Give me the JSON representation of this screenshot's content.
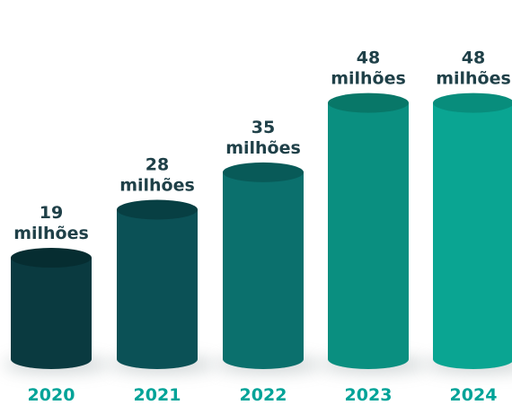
{
  "chart_data": {
    "type": "bar",
    "categories": [
      "2020",
      "2021",
      "2022",
      "2023",
      "2024"
    ],
    "values": [
      19,
      28,
      35,
      48,
      48
    ],
    "value_labels": [
      [
        "19",
        "milhões"
      ],
      [
        "28",
        "milhões"
      ],
      [
        "35",
        "milhões"
      ],
      [
        "48",
        "milhões"
      ],
      [
        "48",
        "milhões"
      ]
    ],
    "bar_colors": [
      "#0a3a40",
      "#0b5156",
      "#0b706d",
      "#0a8f80",
      "#0aa592"
    ],
    "top_colors": [
      "#062d31",
      "#073f43",
      "#085a58",
      "#087768",
      "#088d7c"
    ],
    "year_label_color": "#00a398",
    "value_label_color": "#1f4048",
    "title": "",
    "xlabel": "",
    "ylabel": "",
    "ylim": [
      0,
      48
    ]
  }
}
